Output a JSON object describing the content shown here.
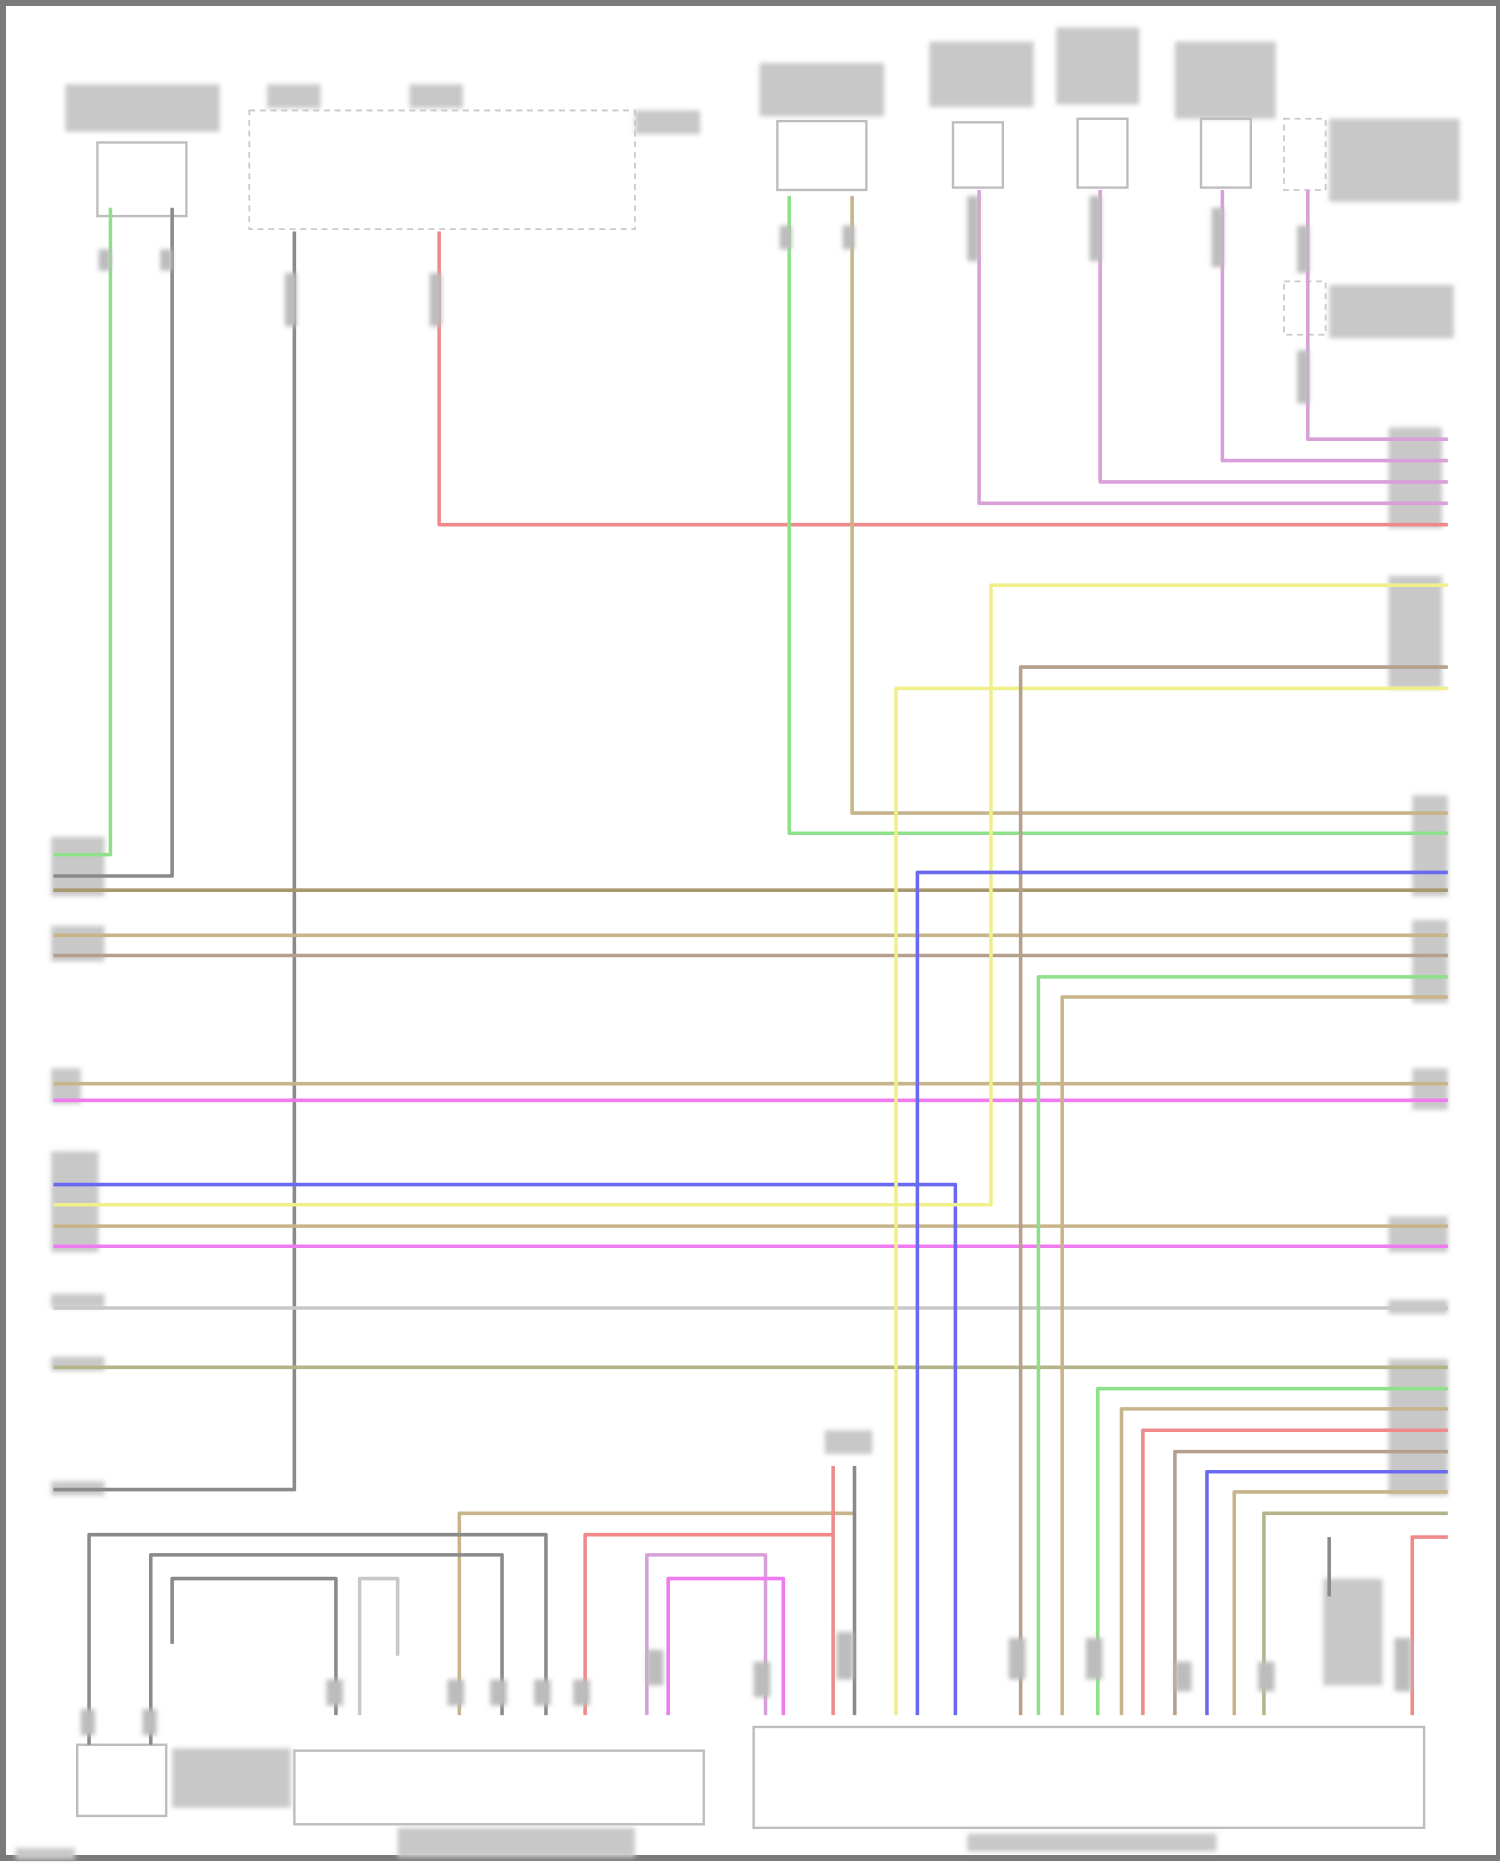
{
  "diagram": {
    "title": "",
    "wire_colors": {
      "green": "#8fe08a",
      "gray": "#8a8a8a",
      "red": "#f08a8a",
      "tan": "#c8b48a",
      "pink": "#d8a0d8",
      "magenta": "#f07af0",
      "blue": "#6a6af0",
      "yellow": "#f0f08a",
      "taupe": "#b4a08c",
      "olive": "#b4b48a",
      "lightgray": "#c8c8c8",
      "darktan": "#a89870"
    }
  }
}
